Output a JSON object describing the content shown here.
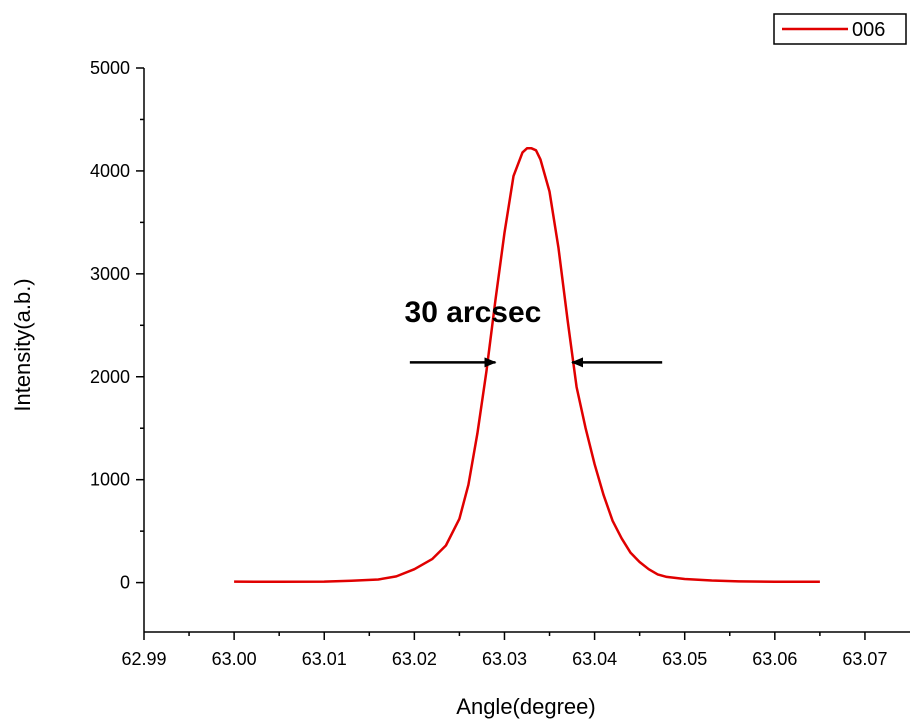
{
  "chart_data": {
    "type": "line",
    "title": "",
    "xlabel": "Angle(degree)",
    "ylabel": "Intensity(a.b.)",
    "xlim": [
      62.99,
      63.075
    ],
    "ylim": [
      -480,
      5000
    ],
    "x_ticks": [
      "62.99",
      "63.00",
      "63.01",
      "63.02",
      "63.03",
      "63.04",
      "63.05",
      "63.06",
      "63.07"
    ],
    "y_ticks": [
      "0",
      "1000",
      "2000",
      "3000",
      "4000",
      "5000"
    ],
    "grid": false,
    "legend_position": "top-right",
    "series": [
      {
        "name": "006",
        "color": "#e00000",
        "x": [
          63.0,
          63.005,
          63.01,
          63.013,
          63.016,
          63.018,
          63.02,
          63.022,
          63.0235,
          63.025,
          63.026,
          63.027,
          63.028,
          63.029,
          63.03,
          63.031,
          63.032,
          63.0325,
          63.033,
          63.0335,
          63.034,
          63.035,
          63.036,
          63.037,
          63.038,
          63.039,
          63.04,
          63.041,
          63.042,
          63.043,
          63.044,
          63.045,
          63.046,
          63.047,
          63.048,
          63.05,
          63.053,
          63.056,
          63.06,
          63.065
        ],
        "y": [
          10,
          8,
          10,
          18,
          30,
          60,
          130,
          230,
          360,
          620,
          950,
          1450,
          2050,
          2750,
          3400,
          3950,
          4180,
          4220,
          4220,
          4200,
          4110,
          3800,
          3250,
          2550,
          1900,
          1500,
          1150,
          850,
          600,
          430,
          290,
          200,
          130,
          80,
          55,
          35,
          20,
          12,
          8,
          8
        ]
      }
    ],
    "annotation": {
      "text": "30 arcsec",
      "left_arrow_from_x": 63.0195,
      "left_arrow_to_x": 63.029,
      "right_arrow_from_x": 63.0475,
      "right_arrow_to_x": 63.0375,
      "arrow_y": 2140,
      "text_x": 63.0265,
      "text_y": 2650,
      "color": "#000000"
    },
    "axis_color": "#000000"
  }
}
